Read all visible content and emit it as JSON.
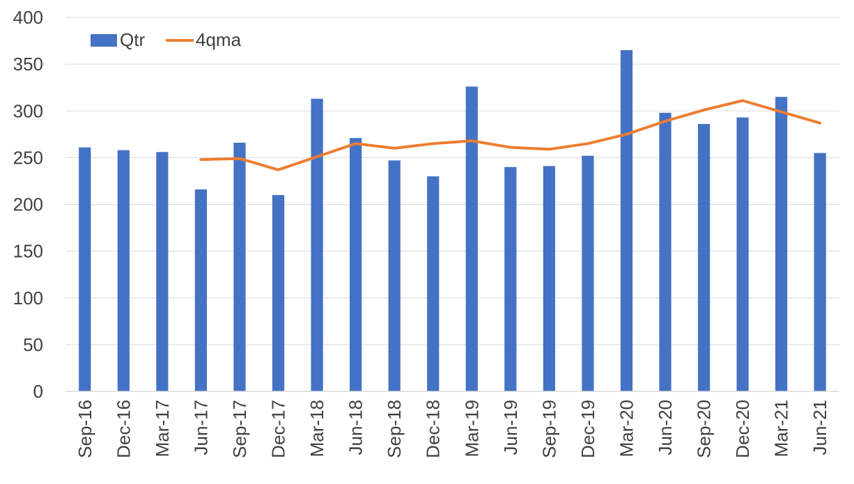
{
  "chart_data": {
    "type": "bar",
    "title": "",
    "xlabel": "",
    "ylabel": "",
    "ylim": [
      0,
      400
    ],
    "yticks": [
      0,
      50,
      100,
      150,
      200,
      250,
      300,
      350,
      400
    ],
    "grid": true,
    "legend_position": "top-left",
    "categories": [
      "Sep-16",
      "Dec-16",
      "Mar-17",
      "Jun-17",
      "Sep-17",
      "Dec-17",
      "Mar-18",
      "Jun-18",
      "Sep-18",
      "Dec-18",
      "Mar-19",
      "Jun-19",
      "Sep-19",
      "Dec-19",
      "Mar-20",
      "Jun-20",
      "Sep-20",
      "Dec-20",
      "Mar-21",
      "Jun-21"
    ],
    "series": [
      {
        "name": "Qtr",
        "type": "bar",
        "color": "#4472C4",
        "values": [
          261,
          258,
          256,
          216,
          266,
          210,
          313,
          271,
          247,
          230,
          326,
          240,
          241,
          252,
          365,
          298,
          286,
          293,
          315,
          255
        ]
      },
      {
        "name": "4qma",
        "type": "line",
        "color": "#ED7D31",
        "values": [
          null,
          null,
          null,
          248,
          249,
          237,
          251,
          265,
          260,
          265,
          268,
          261,
          259,
          265,
          275,
          289,
          301,
          311,
          299,
          287
        ]
      }
    ]
  }
}
